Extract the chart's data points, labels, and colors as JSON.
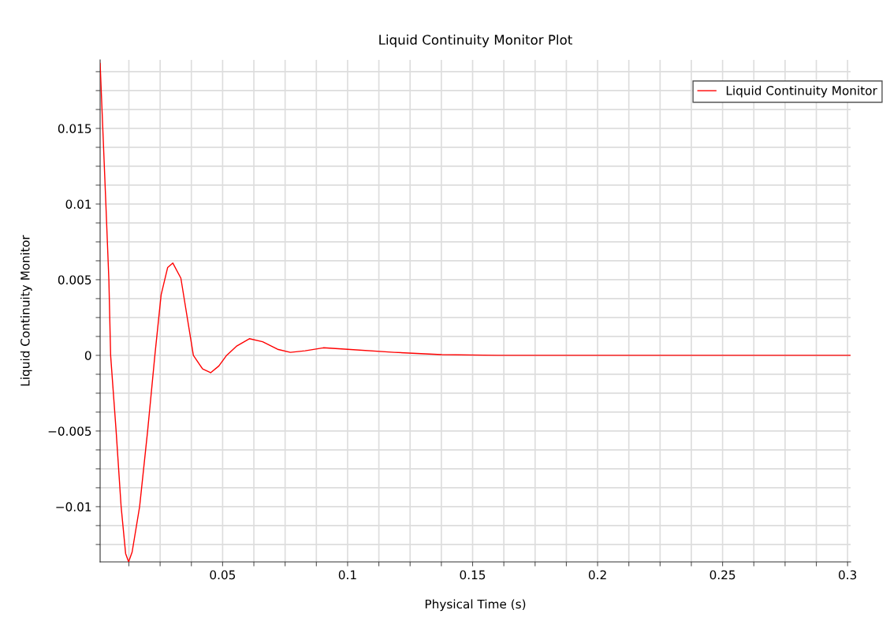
{
  "chart_data": {
    "type": "line",
    "title": "Liquid Continuity Monitor Plot",
    "xlabel": "Physical Time (s)",
    "ylabel": "Liquid Continuity Monitor",
    "x": [
      0.001,
      0.0033,
      0.0045,
      0.0052,
      0.0074,
      0.0094,
      0.0112,
      0.0124,
      0.0138,
      0.0168,
      0.02,
      0.0229,
      0.0254,
      0.028,
      0.0301,
      0.0333,
      0.0383,
      0.042,
      0.0452,
      0.0485,
      0.0516,
      0.0555,
      0.0607,
      0.066,
      0.072,
      0.0771,
      0.083,
      0.0903,
      0.1,
      0.1187,
      0.1376,
      0.16,
      0.2,
      0.25,
      0.3012
    ],
    "series": [
      {
        "name": "Liquid Continuity Monitor",
        "color": "#ff0000",
        "values": [
          0.0193,
          0.01,
          0.005,
          0.0,
          -0.005,
          -0.01,
          -0.0131,
          -0.01365,
          -0.013,
          -0.01,
          -0.005,
          0.0,
          0.004,
          0.0058,
          0.0061,
          0.0051,
          0.0,
          -0.0009,
          -0.00115,
          -0.0007,
          0.0,
          0.0006,
          0.0011,
          0.0009,
          0.0004,
          0.0002,
          0.0003,
          0.0005,
          0.0004,
          0.0002,
          5e-05,
          0.0,
          0.0,
          0.0,
          0.0
        ]
      }
    ],
    "xlim": [
      0.001,
      0.3012
    ],
    "ylim": [
      -0.01365,
      0.01953
    ],
    "xticks": [
      {
        "value": 0.0125,
        "label": null
      },
      {
        "value": 0.025,
        "label": null
      },
      {
        "value": 0.0375,
        "label": null
      },
      0.05,
      {
        "value": 0.0625,
        "label": null
      },
      {
        "value": 0.075,
        "label": null
      },
      {
        "value": 0.0875,
        "label": null
      },
      0.1,
      {
        "value": 0.1125,
        "label": null
      },
      {
        "value": 0.125,
        "label": null
      },
      {
        "value": 0.1375,
        "label": null
      },
      0.15,
      {
        "value": 0.1625,
        "label": null
      },
      {
        "value": 0.175,
        "label": null
      },
      {
        "value": 0.1875,
        "label": null
      },
      0.2,
      {
        "value": 0.2125,
        "label": null
      },
      {
        "value": 0.225,
        "label": null
      },
      {
        "value": 0.2375,
        "label": null
      },
      0.25,
      {
        "value": 0.2625,
        "label": null
      },
      {
        "value": 0.275,
        "label": null
      },
      {
        "value": 0.2875,
        "label": null
      },
      0.3
    ],
    "yticks": [
      {
        "value": -0.0125,
        "label": null
      },
      {
        "value": -0.01125,
        "label": null
      },
      {
        "value": -0.01,
        "label": "−0.01"
      },
      {
        "value": -0.00875,
        "label": null
      },
      {
        "value": -0.0075,
        "label": null
      },
      {
        "value": -0.00625,
        "label": null
      },
      {
        "value": -0.005,
        "label": "−0.005"
      },
      {
        "value": -0.00375,
        "label": null
      },
      {
        "value": -0.0025,
        "label": null
      },
      {
        "value": -0.00125,
        "label": null
      },
      0,
      {
        "value": 0.00125,
        "label": null
      },
      {
        "value": 0.0025,
        "label": null
      },
      {
        "value": 0.00375,
        "label": null
      },
      0.005,
      {
        "value": 0.00625,
        "label": null
      },
      {
        "value": 0.0075,
        "label": null
      },
      {
        "value": 0.00875,
        "label": null
      },
      0.01,
      {
        "value": 0.01125,
        "label": null
      },
      {
        "value": 0.0125,
        "label": null
      },
      {
        "value": 0.01375,
        "label": null
      },
      0.015,
      {
        "value": 0.01625,
        "label": null
      },
      {
        "value": 0.0175,
        "label": null
      },
      {
        "value": 0.01875,
        "label": null
      }
    ],
    "grid": true,
    "legend": "top right",
    "marker": "none",
    "line_style": "solid"
  }
}
